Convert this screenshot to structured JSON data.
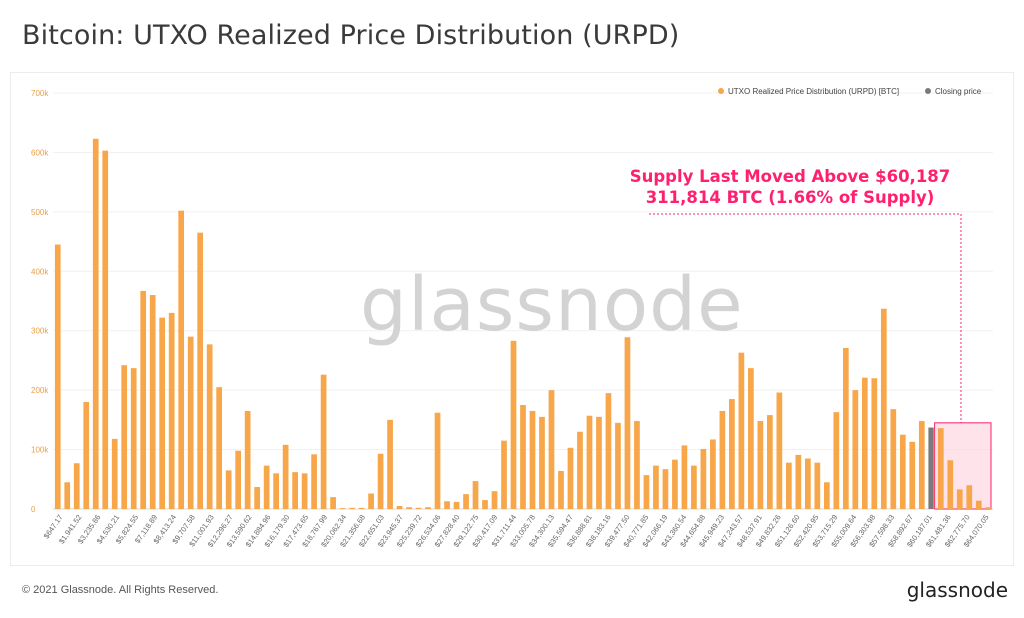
{
  "title": "Bitcoin: UTXO Realized Price Distribution (URPD)",
  "watermark": "glassnode",
  "footer": {
    "copyright": "© 2021 Glassnode. All Rights Reserved.",
    "logo": "glassnode"
  },
  "annotation": {
    "line1": "Supply Last Moved Above $60,187",
    "line2": "311,814 BTC (1.66% of Supply)"
  },
  "colors": {
    "bar": "#f7a64a",
    "closing": "#7a7a7a",
    "annotation": "#ff1f6e",
    "highlight_fill": "#ffd0dc"
  },
  "chart_data": {
    "type": "bar",
    "series_name": "UTXO Realized Price Distribution (URPD) [BTC]",
    "closing_label": "Closing price",
    "ylim": [
      0,
      700000
    ],
    "yticks": [
      "0",
      "100k",
      "200k",
      "300k",
      "400k",
      "500k",
      "600k",
      "700k"
    ],
    "tick_labels": [
      "$647.17",
      "$1,941.52",
      "$3,235.86",
      "$4,530.21",
      "$5,824.55",
      "$7,118.89",
      "$8,413.24",
      "$9,707.58",
      "$11,001.93",
      "$12,296.27",
      "$13,590.62",
      "$14,884.96",
      "$16,179.30",
      "$17,473.65",
      "$18,767.99",
      "$20,062.34",
      "$21,356.68",
      "$22,651.03",
      "$23,945.37",
      "$25,239.72",
      "$26,534.06",
      "$27,828.40",
      "$29,122.75",
      "$30,417.09",
      "$31,711.44",
      "$33,005.78",
      "$34,300.13",
      "$35,594.47",
      "$36,888.81",
      "$38,183.16",
      "$39,477.50",
      "$40,771.85",
      "$42,066.19",
      "$43,360.54",
      "$44,654.88",
      "$45,949.23",
      "$47,243.57",
      "$48,537.91",
      "$49,832.26",
      "$51,126.60",
      "$52,420.95",
      "$53,715.29",
      "$55,009.64",
      "$56,303.98",
      "$57,598.33",
      "$58,892.67",
      "$60,187.01",
      "$61,481.36",
      "$62,775.70",
      "$64,070.05"
    ],
    "values": [
      445000,
      45000,
      77000,
      180000,
      623000,
      603000,
      118000,
      242000,
      237000,
      367000,
      360000,
      322000,
      330000,
      502000,
      290000,
      465000,
      277000,
      205000,
      65000,
      98000,
      165000,
      37000,
      73000,
      60000,
      108000,
      62000,
      60000,
      92000,
      226000,
      20000,
      1500,
      2000,
      2000,
      26000,
      93000,
      150000,
      5000,
      3000,
      2000,
      3000,
      162000,
      13000,
      12000,
      25000,
      47000,
      15000,
      30000,
      115000,
      283000,
      175000,
      165000,
      155000,
      200000,
      64000,
      103000,
      130000,
      157000,
      155000,
      195000,
      145000,
      289000,
      148000,
      57000,
      73000,
      67000,
      83000,
      107000,
      73000,
      101000,
      117000,
      165000,
      185000,
      263000,
      237000,
      148000,
      158000,
      196000,
      78000,
      91000,
      85000,
      78000,
      45000,
      163000,
      271000,
      200000,
      221000,
      220000,
      337000,
      168000,
      125000,
      113000,
      148000,
      137000,
      136000,
      82000,
      33000,
      40000,
      14000,
      3000
    ],
    "closing_index": 92
  }
}
